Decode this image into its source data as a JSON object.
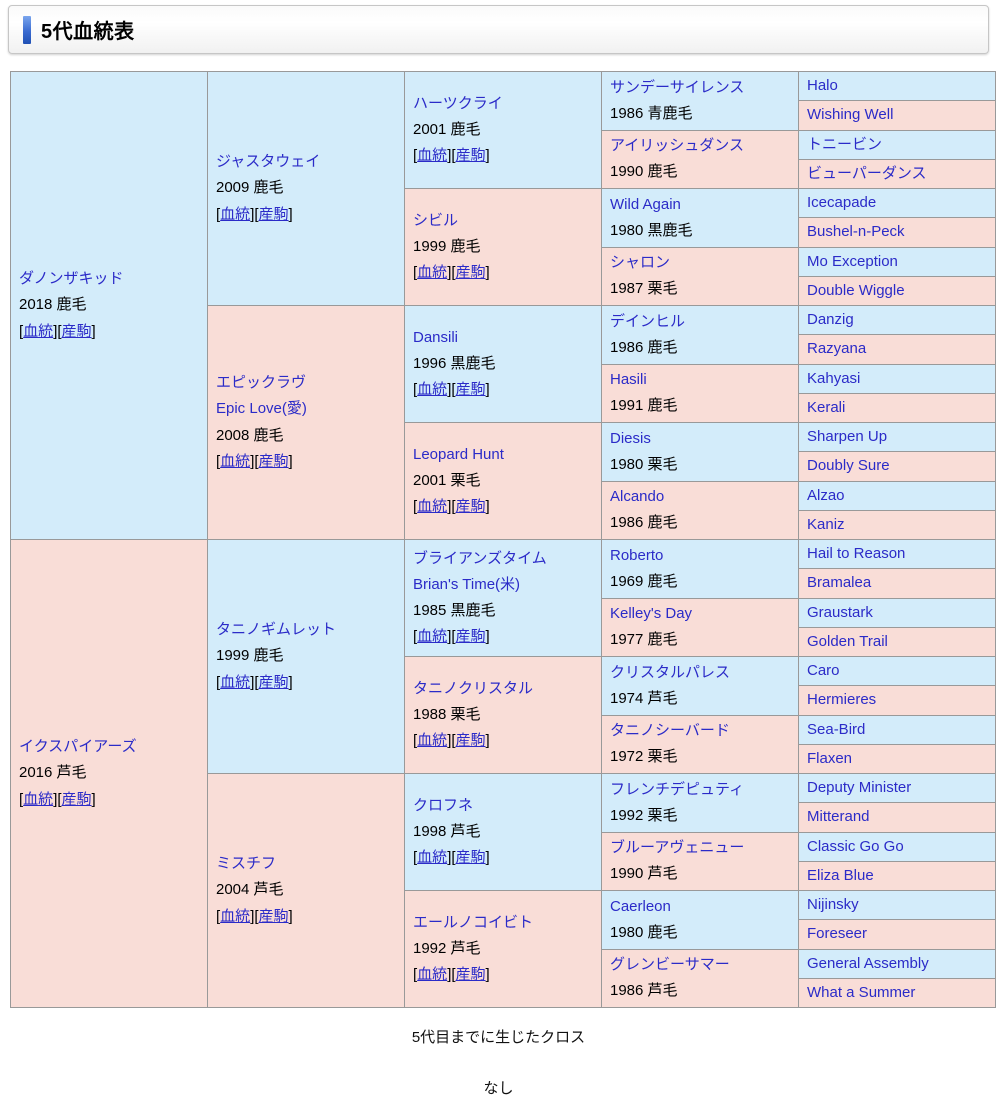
{
  "header": {
    "title": "5代血統表"
  },
  "colors": {
    "male_bg": "#d3ecfa",
    "female_bg": "#f9ddd7",
    "link": "#2b2bc8",
    "accent_bar": "#3a6bd0",
    "table_border": "#999999"
  },
  "pedigree": {
    "blood_label": "血統",
    "offspring_label": "産駒",
    "generations": [
      {
        "rowspan": 16,
        "cells": [
          {
            "name": "ダノンザキッド",
            "info": "2018 鹿毛",
            "links": true,
            "sex": "m"
          },
          {
            "name": "イクスパイアーズ",
            "info": "2016 芦毛",
            "links": true,
            "sex": "f"
          }
        ]
      },
      {
        "rowspan": 8,
        "cells": [
          {
            "name": "ジャスタウェイ",
            "info": "2009 鹿毛",
            "links": true,
            "sex": "m"
          },
          {
            "name": "エピックラヴ",
            "sub": "Epic Love(愛)",
            "info": "2008 鹿毛",
            "links": true,
            "sex": "f"
          },
          {
            "name": "タニノギムレット",
            "info": "1999 鹿毛",
            "links": true,
            "sex": "m"
          },
          {
            "name": "ミスチフ",
            "info": "2004 芦毛",
            "links": true,
            "sex": "f"
          }
        ]
      },
      {
        "rowspan": 4,
        "cells": [
          {
            "name": "ハーツクライ",
            "info": "2001 鹿毛",
            "links": true,
            "sex": "m"
          },
          {
            "name": "シビル",
            "info": "1999 鹿毛",
            "links": true,
            "sex": "f"
          },
          {
            "name": "Dansili",
            "info": "1996 黒鹿毛",
            "links": true,
            "sex": "m"
          },
          {
            "name": "Leopard Hunt",
            "info": "2001 栗毛",
            "links": true,
            "sex": "f"
          },
          {
            "name": "ブライアンズタイム",
            "sub": "Brian's Time(米)",
            "info": "1985 黒鹿毛",
            "links": true,
            "sex": "m"
          },
          {
            "name": "タニノクリスタル",
            "info": "1988 栗毛",
            "links": true,
            "sex": "f"
          },
          {
            "name": "クロフネ",
            "info": "1998 芦毛",
            "links": true,
            "sex": "m"
          },
          {
            "name": "エールノコイビト",
            "info": "1992 芦毛",
            "links": true,
            "sex": "f"
          }
        ]
      },
      {
        "rowspan": 2,
        "cells": [
          {
            "name": "サンデーサイレンス",
            "info": "1986 青鹿毛",
            "links": false,
            "sex": "m"
          },
          {
            "name": "アイリッシュダンス",
            "info": "1990 鹿毛",
            "links": false,
            "sex": "f"
          },
          {
            "name": "Wild Again",
            "info": "1980 黒鹿毛",
            "links": false,
            "sex": "m"
          },
          {
            "name": "シャロン",
            "info": "1987 栗毛",
            "links": false,
            "sex": "f"
          },
          {
            "name": "デインヒル",
            "info": "1986 鹿毛",
            "links": false,
            "sex": "m"
          },
          {
            "name": "Hasili",
            "info": "1991 鹿毛",
            "links": false,
            "sex": "f"
          },
          {
            "name": "Diesis",
            "info": "1980 栗毛",
            "links": false,
            "sex": "m"
          },
          {
            "name": "Alcando",
            "info": "1986 鹿毛",
            "links": false,
            "sex": "f"
          },
          {
            "name": "Roberto",
            "info": "1969 鹿毛",
            "links": false,
            "sex": "m"
          },
          {
            "name": "Kelley's Day",
            "info": "1977 鹿毛",
            "links": false,
            "sex": "f"
          },
          {
            "name": "クリスタルパレス",
            "info": "1974 芦毛",
            "links": false,
            "sex": "m"
          },
          {
            "name": "タニノシーバード",
            "info": "1972 栗毛",
            "links": false,
            "sex": "f"
          },
          {
            "name": "フレンチデピュティ",
            "info": "1992 栗毛",
            "links": false,
            "sex": "m"
          },
          {
            "name": "ブルーアヴェニュー",
            "info": "1990 芦毛",
            "links": false,
            "sex": "f"
          },
          {
            "name": "Caerleon",
            "info": "1980 鹿毛",
            "links": false,
            "sex": "m"
          },
          {
            "name": "グレンビーサマー",
            "info": "1986 芦毛",
            "links": false,
            "sex": "f"
          }
        ]
      },
      {
        "rowspan": 1,
        "cells": [
          {
            "name": "Halo",
            "sex": "m"
          },
          {
            "name": "Wishing Well",
            "sex": "f"
          },
          {
            "name": "トニービン",
            "sex": "m"
          },
          {
            "name": "ビューパーダンス",
            "sex": "f"
          },
          {
            "name": "Icecapade",
            "sex": "m"
          },
          {
            "name": "Bushel-n-Peck",
            "sex": "f"
          },
          {
            "name": "Mo Exception",
            "sex": "m"
          },
          {
            "name": "Double Wiggle",
            "sex": "f"
          },
          {
            "name": "Danzig",
            "sex": "m"
          },
          {
            "name": "Razyana",
            "sex": "f"
          },
          {
            "name": "Kahyasi",
            "sex": "m"
          },
          {
            "name": "Kerali",
            "sex": "f"
          },
          {
            "name": "Sharpen Up",
            "sex": "m"
          },
          {
            "name": "Doubly Sure",
            "sex": "f"
          },
          {
            "name": "Alzao",
            "sex": "m"
          },
          {
            "name": "Kaniz",
            "sex": "f"
          },
          {
            "name": "Hail to Reason",
            "sex": "m"
          },
          {
            "name": "Bramalea",
            "sex": "f"
          },
          {
            "name": "Graustark",
            "sex": "m"
          },
          {
            "name": "Golden Trail",
            "sex": "f"
          },
          {
            "name": "Caro",
            "sex": "m"
          },
          {
            "name": "Hermieres",
            "sex": "f"
          },
          {
            "name": "Sea-Bird",
            "sex": "m"
          },
          {
            "name": "Flaxen",
            "sex": "f"
          },
          {
            "name": "Deputy Minister",
            "sex": "m"
          },
          {
            "name": "Mitterand",
            "sex": "f"
          },
          {
            "name": "Classic Go Go",
            "sex": "m"
          },
          {
            "name": "Eliza Blue",
            "sex": "f"
          },
          {
            "name": "Nijinsky",
            "sex": "m"
          },
          {
            "name": "Foreseer",
            "sex": "f"
          },
          {
            "name": "General Assembly",
            "sex": "m"
          },
          {
            "name": "What a Summer",
            "sex": "f"
          }
        ]
      }
    ]
  },
  "footer": {
    "cross_heading": "5代目までに生じたクロス",
    "cross_value": "なし"
  }
}
